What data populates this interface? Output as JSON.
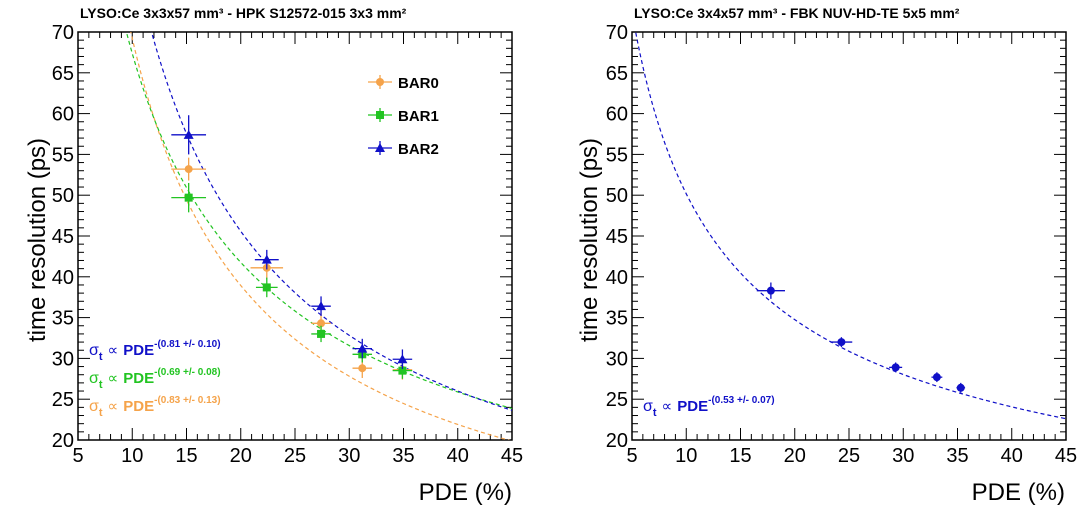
{
  "chart_data": [
    {
      "type": "scatter",
      "title": "LYSO:Ce 3x3x57 mm³ - HPK S12572-015 3x3 mm²",
      "xlabel": "PDE (%)",
      "ylabel": "time resolution (ps)",
      "xlim": [
        5,
        45
      ],
      "ylim": [
        20,
        70
      ],
      "x_ticks": [
        "5",
        "10",
        "15",
        "20",
        "25",
        "30",
        "35",
        "40",
        "45"
      ],
      "y_ticks": [
        "20",
        "25",
        "30",
        "35",
        "40",
        "45",
        "50",
        "55",
        "60",
        "65",
        "70"
      ],
      "legend_position": "top-right",
      "series": [
        {
          "name": "BAR0",
          "color": "#f5a34a",
          "marker": "circle",
          "x": [
            15.2,
            22.4,
            27.4,
            31.2,
            34.9
          ],
          "y": [
            53.2,
            41.1,
            34.3,
            28.8,
            28.6
          ],
          "x_err": [
            1.6,
            1.5,
            0.9,
            0.9,
            0.9
          ],
          "y_err": [
            1.4,
            1.4,
            1.2,
            1.2,
            1.2
          ],
          "fit": {
            "coef": 468,
            "exp": 0.83
          }
        },
        {
          "name": "BAR1",
          "color": "#22c422",
          "marker": "square",
          "x": [
            15.2,
            22.4,
            27.4,
            31.2,
            34.9
          ],
          "y": [
            49.7,
            38.7,
            33.0,
            30.5,
            28.5
          ],
          "x_err": [
            1.6,
            1.0,
            0.9,
            0.9,
            0.9
          ],
          "y_err": [
            1.8,
            1.2,
            1.0,
            1.0,
            1.0
          ],
          "fit": {
            "coef": 330,
            "exp": 0.69
          }
        },
        {
          "name": "BAR2",
          "color": "#1010c8",
          "marker": "triangle",
          "x": [
            15.2,
            22.4,
            27.4,
            31.2,
            34.9
          ],
          "y": [
            57.4,
            42.1,
            36.4,
            31.2,
            29.9
          ],
          "x_err": [
            1.6,
            1.1,
            0.9,
            0.9,
            0.9
          ],
          "y_err": [
            2.4,
            1.2,
            1.2,
            1.2,
            1.2
          ],
          "fit": {
            "coef": 516,
            "exp": 0.81
          }
        }
      ],
      "fit_annotations": [
        {
          "lhs": "σ",
          "sub": "t",
          "prop": "∝",
          "base": "PDE",
          "exp": "-(0.81 +/- 0.10)",
          "color": "#1010c8"
        },
        {
          "lhs": "σ",
          "sub": "t",
          "prop": "∝",
          "base": "PDE",
          "exp": "-(0.69 +/- 0.08)",
          "color": "#22c422"
        },
        {
          "lhs": "σ",
          "sub": "t",
          "prop": "∝",
          "base": "PDE",
          "exp": "-(0.83 +/- 0.13)",
          "color": "#f5a34a"
        }
      ]
    },
    {
      "type": "scatter",
      "title": "LYSO:Ce 3x4x57 mm³ - FBK NUV-HD-TE 5x5 mm²",
      "xlabel": "PDE (%)",
      "ylabel": "time resolution (ps)",
      "xlim": [
        5,
        45
      ],
      "ylim": [
        20,
        70
      ],
      "x_ticks": [
        "5",
        "10",
        "15",
        "20",
        "25",
        "30",
        "35",
        "40",
        "45"
      ],
      "y_ticks": [
        "20",
        "25",
        "30",
        "35",
        "40",
        "45",
        "50",
        "55",
        "60",
        "65",
        "70"
      ],
      "series": [
        {
          "color": "#1010c8",
          "marker": "circle",
          "x": [
            17.8,
            24.3,
            29.3,
            33.1,
            35.3
          ],
          "y": [
            38.3,
            32.0,
            28.9,
            27.7,
            26.4
          ],
          "x_err": [
            1.3,
            1.0,
            0.6,
            0.5,
            0.4
          ],
          "y_err": [
            1.0,
            0.6,
            0.6,
            0.6,
            0.6
          ],
          "fit": {
            "coef": 170,
            "exp": 0.53
          }
        }
      ],
      "fit_annotations": [
        {
          "lhs": "σ",
          "sub": "t",
          "prop": "∝",
          "base": "PDE",
          "exp": "-(0.53 +/- 0.07)",
          "color": "#1010c8"
        }
      ]
    }
  ]
}
